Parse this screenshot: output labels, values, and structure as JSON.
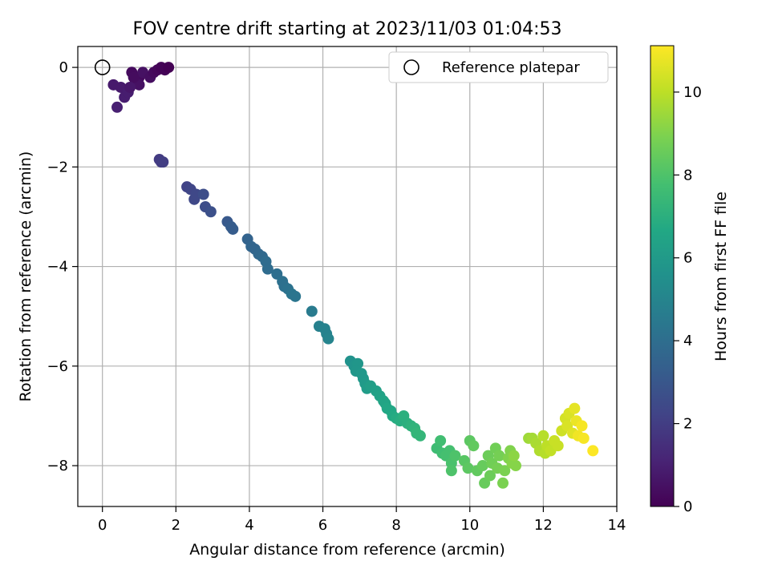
{
  "chart_data": {
    "type": "scatter",
    "title": "FOV centre drift starting at 2023/11/03 01:04:53",
    "xlabel": "Angular distance from reference (arcmin)",
    "ylabel": "Rotation from reference (arcmin)",
    "colorbar_label": "Hours from first FF file",
    "xlim": [
      -0.67,
      14.0
    ],
    "ylim": [
      -8.82,
      0.42
    ],
    "color_range": [
      0,
      11.12
    ],
    "x_ticks": [
      0,
      2,
      4,
      6,
      8,
      10,
      12,
      14
    ],
    "y_ticks": [
      0,
      -2,
      -4,
      -6,
      -8
    ],
    "colorbar_ticks": [
      0,
      2,
      4,
      6,
      8,
      10
    ],
    "grid": true,
    "colormap": "viridis",
    "legend": {
      "position": "top-right",
      "label": "Reference platepar"
    },
    "reference_point": {
      "x": 0,
      "y": 0
    },
    "points": [
      [
        0.8,
        -0.1,
        0.3
      ],
      [
        1.0,
        -0.2,
        0.3
      ],
      [
        1.1,
        -0.1,
        0.5
      ],
      [
        1.3,
        -0.2,
        0.4
      ],
      [
        1.4,
        -0.1,
        0.3
      ],
      [
        1.5,
        -0.05,
        0.2
      ],
      [
        1.6,
        0.0,
        0.1
      ],
      [
        1.7,
        -0.05,
        0.1
      ],
      [
        1.8,
        0.0,
        0.0
      ],
      [
        0.9,
        -0.3,
        0.4
      ],
      [
        1.0,
        -0.35,
        0.5
      ],
      [
        0.85,
        -0.2,
        0.35
      ],
      [
        0.3,
        -0.35,
        0.8
      ],
      [
        0.5,
        -0.4,
        0.8
      ],
      [
        0.6,
        -0.6,
        0.9
      ],
      [
        0.7,
        -0.5,
        0.9
      ],
      [
        0.75,
        -0.4,
        0.7
      ],
      [
        0.4,
        -0.8,
        1.0
      ],
      [
        1.55,
        -1.85,
        1.9
      ],
      [
        1.6,
        -1.9,
        1.95
      ],
      [
        1.65,
        -1.9,
        2.0
      ],
      [
        2.3,
        -2.4,
        2.2
      ],
      [
        2.4,
        -2.45,
        2.3
      ],
      [
        2.5,
        -2.65,
        2.4
      ],
      [
        2.55,
        -2.55,
        2.4
      ],
      [
        2.75,
        -2.55,
        2.6
      ],
      [
        2.8,
        -2.8,
        2.6
      ],
      [
        2.95,
        -2.9,
        2.7
      ],
      [
        3.4,
        -3.1,
        3.1
      ],
      [
        3.5,
        -3.2,
        3.2
      ],
      [
        3.55,
        -3.25,
        3.2
      ],
      [
        3.95,
        -3.45,
        3.5
      ],
      [
        4.05,
        -3.6,
        3.6
      ],
      [
        4.15,
        -3.65,
        3.6
      ],
      [
        4.25,
        -3.75,
        3.7
      ],
      [
        4.35,
        -3.8,
        3.8
      ],
      [
        4.45,
        -3.9,
        3.9
      ],
      [
        4.5,
        -4.05,
        3.9
      ],
      [
        4.75,
        -4.15,
        4.0
      ],
      [
        4.9,
        -4.3,
        4.1
      ],
      [
        4.95,
        -4.4,
        4.1
      ],
      [
        5.05,
        -4.45,
        4.2
      ],
      [
        5.15,
        -4.55,
        4.3
      ],
      [
        5.25,
        -4.6,
        4.3
      ],
      [
        5.7,
        -4.9,
        4.6
      ],
      [
        5.9,
        -5.2,
        4.8
      ],
      [
        6.05,
        -5.25,
        4.9
      ],
      [
        6.1,
        -5.35,
        4.9
      ],
      [
        6.15,
        -5.45,
        5.0
      ],
      [
        6.75,
        -5.9,
        5.6
      ],
      [
        6.85,
        -6.0,
        5.7
      ],
      [
        6.95,
        -5.95,
        5.8
      ],
      [
        6.9,
        -6.1,
        5.8
      ],
      [
        7.05,
        -6.15,
        5.9
      ],
      [
        7.1,
        -6.25,
        5.9
      ],
      [
        7.15,
        -6.35,
        6.0
      ],
      [
        7.2,
        -6.45,
        6.1
      ],
      [
        7.3,
        -6.4,
        6.2
      ],
      [
        7.45,
        -6.5,
        6.3
      ],
      [
        7.55,
        -6.6,
        6.4
      ],
      [
        7.65,
        -6.7,
        6.5
      ],
      [
        7.7,
        -6.75,
        6.5
      ],
      [
        7.75,
        -6.85,
        6.6
      ],
      [
        7.85,
        -6.9,
        6.6
      ],
      [
        7.9,
        -7.0,
        6.7
      ],
      [
        8.0,
        -7.05,
        6.8
      ],
      [
        8.1,
        -7.1,
        6.9
      ],
      [
        8.2,
        -7.0,
        7.0
      ],
      [
        8.3,
        -7.15,
        7.0
      ],
      [
        8.4,
        -7.2,
        7.1
      ],
      [
        8.5,
        -7.25,
        7.2
      ],
      [
        8.55,
        -7.35,
        7.3
      ],
      [
        8.65,
        -7.4,
        7.3
      ],
      [
        9.1,
        -7.65,
        7.6
      ],
      [
        9.2,
        -7.5,
        7.7
      ],
      [
        9.25,
        -7.75,
        7.7
      ],
      [
        9.35,
        -7.8,
        7.8
      ],
      [
        9.45,
        -7.7,
        7.8
      ],
      [
        9.5,
        -7.95,
        7.9
      ],
      [
        9.6,
        -7.8,
        8.0
      ],
      [
        9.5,
        -8.1,
        8.0
      ],
      [
        9.85,
        -7.9,
        8.2
      ],
      [
        9.95,
        -8.05,
        8.3
      ],
      [
        10.0,
        -7.5,
        8.3
      ],
      [
        10.1,
        -7.6,
        8.4
      ],
      [
        10.2,
        -8.1,
        8.4
      ],
      [
        10.35,
        -8.0,
        8.5
      ],
      [
        10.4,
        -8.35,
        8.5
      ],
      [
        10.5,
        -7.8,
        8.6
      ],
      [
        10.55,
        -8.2,
        8.6
      ],
      [
        10.6,
        -7.95,
        8.7
      ],
      [
        10.7,
        -7.65,
        8.7
      ],
      [
        10.75,
        -8.05,
        8.8
      ],
      [
        10.8,
        -7.8,
        8.8
      ],
      [
        10.9,
        -8.35,
        8.9
      ],
      [
        10.95,
        -8.1,
        8.9
      ],
      [
        11.05,
        -7.85,
        9.0
      ],
      [
        11.1,
        -7.7,
        9.0
      ],
      [
        11.15,
        -7.95,
        9.1
      ],
      [
        11.25,
        -8.0,
        9.1
      ],
      [
        11.2,
        -7.8,
        9.2
      ],
      [
        11.6,
        -7.45,
        9.5
      ],
      [
        11.7,
        -7.45,
        9.6
      ],
      [
        11.8,
        -7.55,
        9.7
      ],
      [
        11.9,
        -7.7,
        9.8
      ],
      [
        12.0,
        -7.4,
        9.9
      ],
      [
        12.05,
        -7.75,
        9.9
      ],
      [
        12.1,
        -7.6,
        10.0
      ],
      [
        12.2,
        -7.7,
        10.1
      ],
      [
        12.3,
        -7.5,
        10.2
      ],
      [
        12.4,
        -7.6,
        10.2
      ],
      [
        12.5,
        -7.3,
        10.3
      ],
      [
        12.6,
        -7.05,
        10.4
      ],
      [
        12.65,
        -7.2,
        10.5
      ],
      [
        12.7,
        -6.95,
        10.5
      ],
      [
        12.8,
        -7.35,
        10.6
      ],
      [
        12.85,
        -6.85,
        10.7
      ],
      [
        12.9,
        -7.1,
        10.8
      ],
      [
        12.95,
        -7.4,
        10.9
      ],
      [
        13.05,
        -7.2,
        11.0
      ],
      [
        13.1,
        -7.45,
        11.0
      ],
      [
        13.35,
        -7.7,
        11.1
      ]
    ]
  }
}
